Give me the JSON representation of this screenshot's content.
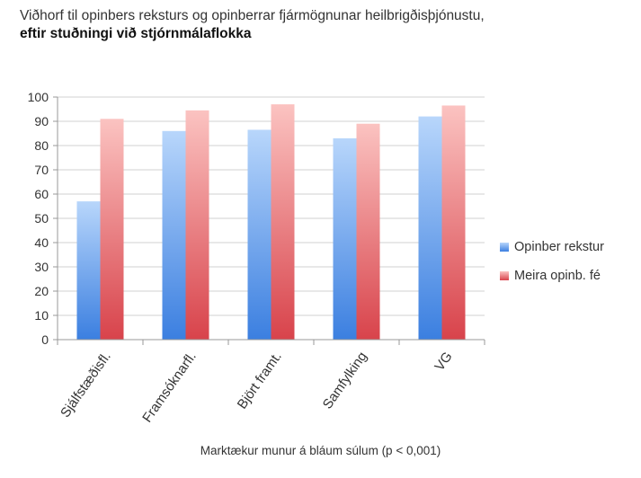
{
  "title": {
    "line1": "Viðhorf til opinbers reksturs og opinberrar fjármögnunar heilbrigðisþjónustu,",
    "line2": "eftir stuðningi við stjórnmálaflokka"
  },
  "caption": "Marktækur munur á bláum súlum (p < 0,001)",
  "colors": {
    "series1_top": "#b8d6fb",
    "series1_bottom": "#3b7fe0",
    "series2_top": "#fbc3c1",
    "series2_bottom": "#d8434b",
    "grid": "#d0d0d0",
    "axis": "#999999"
  },
  "chart_data": {
    "type": "bar",
    "categories": [
      "Sjálfstæðisfl.",
      "Framsóknarfl.",
      "Björt framt.",
      "Samfylking",
      "VG"
    ],
    "series": [
      {
        "name": "Opinber rekstur",
        "values": [
          57,
          86,
          86.5,
          83,
          92
        ]
      },
      {
        "name": "Meira opinb. fé",
        "values": [
          91,
          94.5,
          97,
          89,
          96.5
        ]
      }
    ],
    "ylim": [
      0,
      100
    ],
    "yticks": [
      0,
      10,
      20,
      30,
      40,
      50,
      60,
      70,
      80,
      90,
      100
    ],
    "grid": true,
    "legend_position": "right"
  }
}
